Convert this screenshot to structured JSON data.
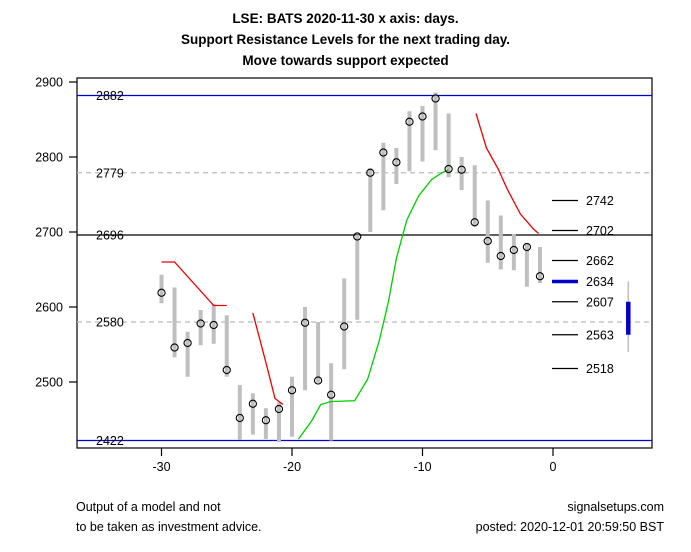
{
  "title": {
    "line1": "LSE: BATS 2020-11-30 x axis: days.",
    "line2": "Support Resistance Levels for the next trading day.",
    "line3": "Move towards support expected"
  },
  "footer": {
    "disclaimer_line1": "Output of a model and not",
    "disclaimer_line2": "to be taken as investment advice.",
    "site": "signalsetups.com",
    "posted": "posted: 2020-12-01 20:59:50 BST"
  },
  "chart_data": {
    "type": "bar",
    "subtype": "high-low range bars with open circles, support/resistance level lines, red/green trend lines and next-day forecast range",
    "xlabel": "days",
    "ylabel": "",
    "xlim": [
      -36.5,
      7.6
    ],
    "ylim": [
      2412,
      2905
    ],
    "x_ticks": [
      -30,
      -20,
      -10,
      0
    ],
    "y_ticks": [
      2500,
      2600,
      2700,
      2800,
      2900
    ],
    "grid": false,
    "bars_columns": [
      "day",
      "high",
      "low",
      "open"
    ],
    "bars": [
      [
        -30,
        2643,
        2605,
        2619
      ],
      [
        -29,
        2626,
        2533,
        2546
      ],
      [
        -28,
        2567,
        2507,
        2552
      ],
      [
        -27,
        2596,
        2549,
        2578
      ],
      [
        -26,
        2604,
        2551,
        2576
      ],
      [
        -25,
        2589,
        2507,
        2516
      ],
      [
        -24,
        2496,
        2423,
        2452
      ],
      [
        -23,
        2485,
        2430,
        2471
      ],
      [
        -22,
        2465,
        2424,
        2449
      ],
      [
        -21,
        2473,
        2420,
        2464
      ],
      [
        -20,
        2507,
        2427,
        2489
      ],
      [
        -19,
        2600,
        2489,
        2579
      ],
      [
        -18,
        2580,
        2499,
        2502
      ],
      [
        -17,
        2525,
        2422,
        2483
      ],
      [
        -16,
        2638,
        2517,
        2574
      ],
      [
        -15,
        2696,
        2583,
        2694
      ],
      [
        -14,
        2785,
        2700,
        2779
      ],
      [
        -13,
        2819,
        2729,
        2806
      ],
      [
        -12,
        2812,
        2764,
        2793
      ],
      [
        -11,
        2861,
        2781,
        2847
      ],
      [
        -10,
        2868,
        2794,
        2854
      ],
      [
        -9,
        2886,
        2809,
        2878
      ],
      [
        -8,
        2858,
        2773,
        2784
      ],
      [
        -7,
        2800,
        2756,
        2783
      ],
      [
        -6,
        2789,
        2707,
        2713
      ],
      [
        -5,
        2742,
        2659,
        2688
      ],
      [
        -4,
        2722,
        2650,
        2668
      ],
      [
        -3,
        2697,
        2649,
        2676
      ],
      [
        -2,
        2684,
        2627,
        2680
      ],
      [
        -1,
        2680,
        2632,
        2641
      ]
    ],
    "levels_left": [
      {
        "value": 2882,
        "style": "blue-solid"
      },
      {
        "value": 2779,
        "style": "gray-dashed"
      },
      {
        "value": 2696,
        "style": "black-solid"
      },
      {
        "value": 2580,
        "style": "gray-dashed"
      },
      {
        "value": 2422,
        "style": "blue-solid"
      }
    ],
    "levels_right": [
      {
        "value": 2742,
        "highlight": false
      },
      {
        "value": 2702,
        "highlight": false
      },
      {
        "value": 2662,
        "highlight": false
      },
      {
        "value": 2634,
        "highlight": true
      },
      {
        "value": 2607,
        "highlight": false
      },
      {
        "value": 2563,
        "highlight": false
      },
      {
        "value": 2518,
        "highlight": false
      }
    ],
    "red_lines": [
      [
        [
          -30,
          2660
        ],
        [
          -29,
          2660
        ],
        [
          -26,
          2602
        ],
        [
          -25,
          2602
        ]
      ],
      [
        [
          -23,
          2592
        ],
        [
          -22,
          2526
        ],
        [
          -21.3,
          2478
        ],
        [
          -20.7,
          2470
        ]
      ],
      [
        [
          -5.9,
          2858
        ],
        [
          -5.1,
          2812
        ],
        [
          -4.2,
          2784
        ],
        [
          -3.5,
          2757
        ],
        [
          -2.5,
          2724
        ],
        [
          -1.5,
          2704
        ],
        [
          -1.1,
          2698
        ]
      ]
    ],
    "green_line": [
      [
        -19.5,
        2424
      ],
      [
        -18.5,
        2448
      ],
      [
        -17.8,
        2470
      ],
      [
        -17,
        2474
      ],
      [
        -15.2,
        2475
      ],
      [
        -14.2,
        2504
      ],
      [
        -13.3,
        2556
      ],
      [
        -12.6,
        2608
      ],
      [
        -12,
        2665
      ],
      [
        -11.2,
        2716
      ],
      [
        -10.3,
        2748
      ],
      [
        -9.3,
        2770
      ],
      [
        -8.5,
        2779
      ],
      [
        -8,
        2783
      ]
    ],
    "forecast": {
      "day": 5.77,
      "range_high": 2634,
      "range_low": 2540,
      "box_high": 2607,
      "box_low": 2563
    },
    "colors": {
      "bar": "#bfbfbf",
      "circle": "#000000",
      "blue_level": "#0000cc",
      "black_level": "#000000",
      "dashed_level": "#bbbbbb",
      "red_line": "#ee0000",
      "green_line": "#00cc00",
      "forecast_box": "#0000cc",
      "forecast_range": "#c0c0c0",
      "axis": "#000000"
    }
  }
}
